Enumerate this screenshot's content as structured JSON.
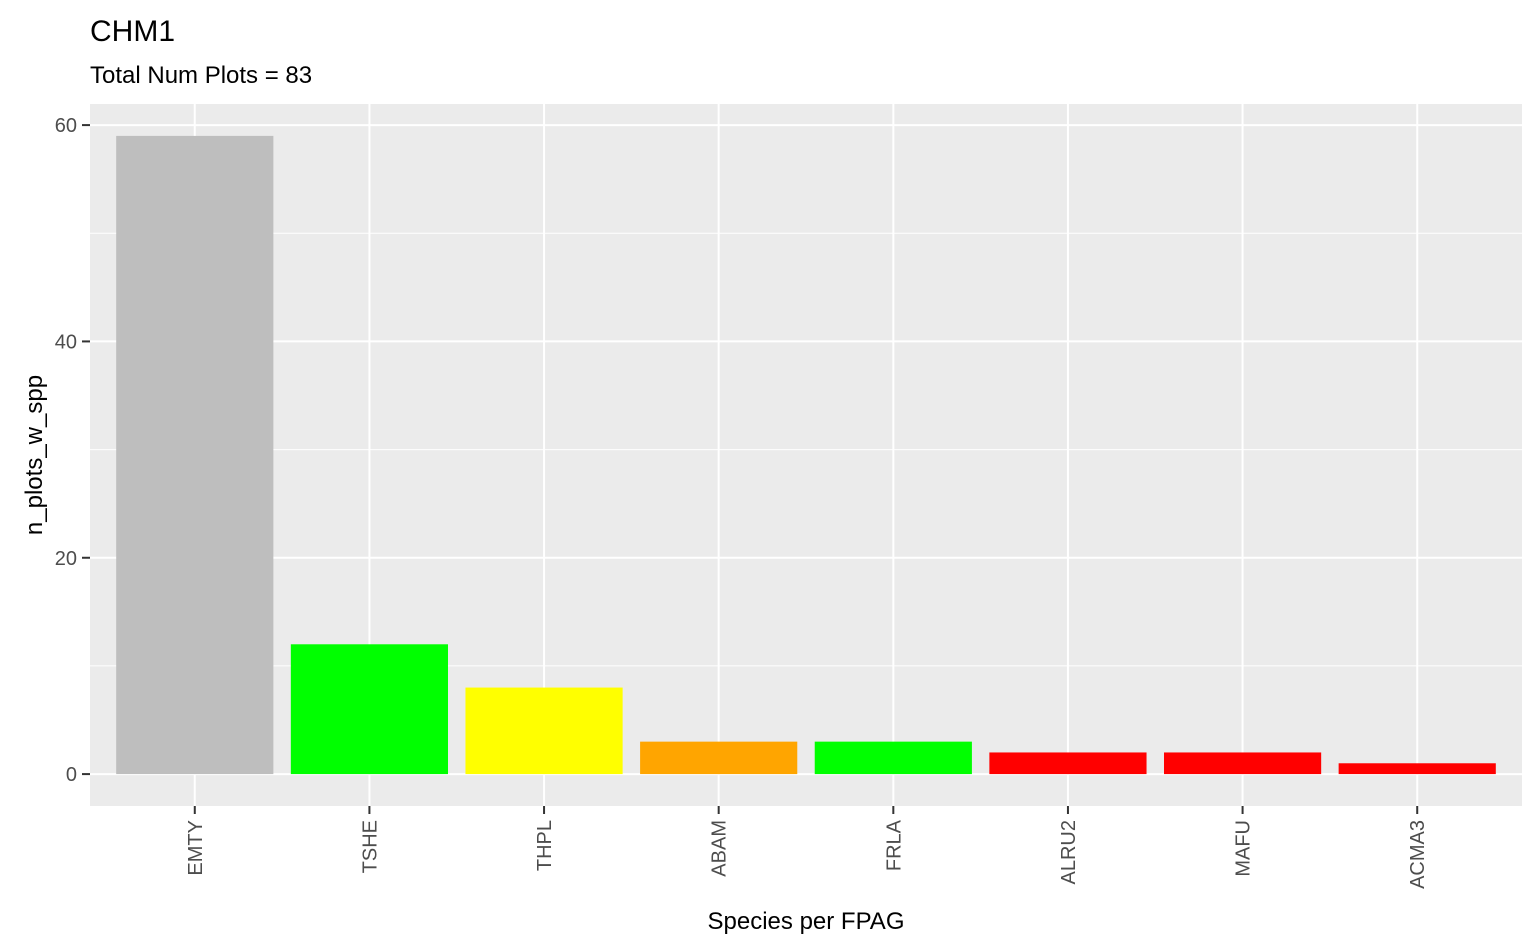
{
  "chart_data": {
    "type": "bar",
    "title": "CHM1",
    "subtitle": "Total Num Plots = 83",
    "xlabel": "Species per FPAG",
    "ylabel": "n_plots_w_spp",
    "categories": [
      "EMTY",
      "TSHE",
      "THPL",
      "ABAM",
      "FRLA",
      "ALRU2",
      "MAFU",
      "ACMA3"
    ],
    "values": [
      59,
      12,
      8,
      3,
      3,
      2,
      2,
      1
    ],
    "colors": [
      "#bebebe",
      "#00ff00",
      "#ffff00",
      "#ffa500",
      "#00ff00",
      "#ff0000",
      "#ff0000",
      "#ff0000"
    ],
    "yticks": [
      0,
      20,
      40,
      60
    ],
    "ylim": [
      -2.95,
      61.95
    ],
    "grid": true,
    "panel_background": "#ebebeb",
    "grid_color": "#ffffff"
  }
}
